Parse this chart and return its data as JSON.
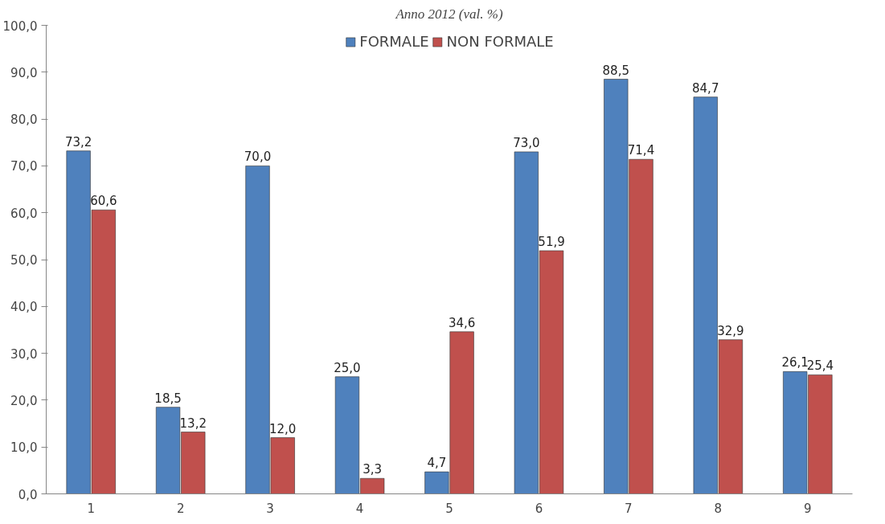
{
  "chart_data": {
    "type": "bar",
    "title": "Anno 2012 (val. %)",
    "categories": [
      "1",
      "2",
      "3",
      "4",
      "5",
      "6",
      "7",
      "8",
      "9"
    ],
    "series": [
      {
        "name": "FORMALE",
        "color": "#4f81bd",
        "values": [
          73.2,
          18.5,
          70.0,
          25.0,
          4.7,
          73.0,
          88.5,
          84.7,
          26.1
        ],
        "value_labels": [
          "73,2",
          "18,5",
          "70,0",
          "25,0",
          "4,7",
          "73,0",
          "88,5",
          "84,7",
          "26,1"
        ]
      },
      {
        "name": "NON FORMALE",
        "color": "#c0504d",
        "values": [
          60.6,
          13.2,
          12.0,
          3.3,
          34.6,
          51.9,
          71.4,
          32.9,
          25.4
        ],
        "value_labels": [
          "60,6",
          "13,2",
          "12,0",
          "3,3",
          "34,6",
          "51,9",
          "71,4",
          "32,9",
          "25,4"
        ]
      }
    ],
    "ylim": [
      0,
      100
    ],
    "yticks": [
      {
        "value": 0,
        "label": "0,0"
      },
      {
        "value": 10,
        "label": "10,0"
      },
      {
        "value": 20,
        "label": "20,0"
      },
      {
        "value": 30,
        "label": "30,0"
      },
      {
        "value": 40,
        "label": "40,0"
      },
      {
        "value": 50,
        "label": "50,0"
      },
      {
        "value": 60,
        "label": "60,0"
      },
      {
        "value": 70,
        "label": "70,0"
      },
      {
        "value": 80,
        "label": "80,0"
      },
      {
        "value": 90,
        "label": "90,0"
      },
      {
        "value": 100,
        "label": "100,0"
      }
    ],
    "legend": "top",
    "grid": false
  }
}
